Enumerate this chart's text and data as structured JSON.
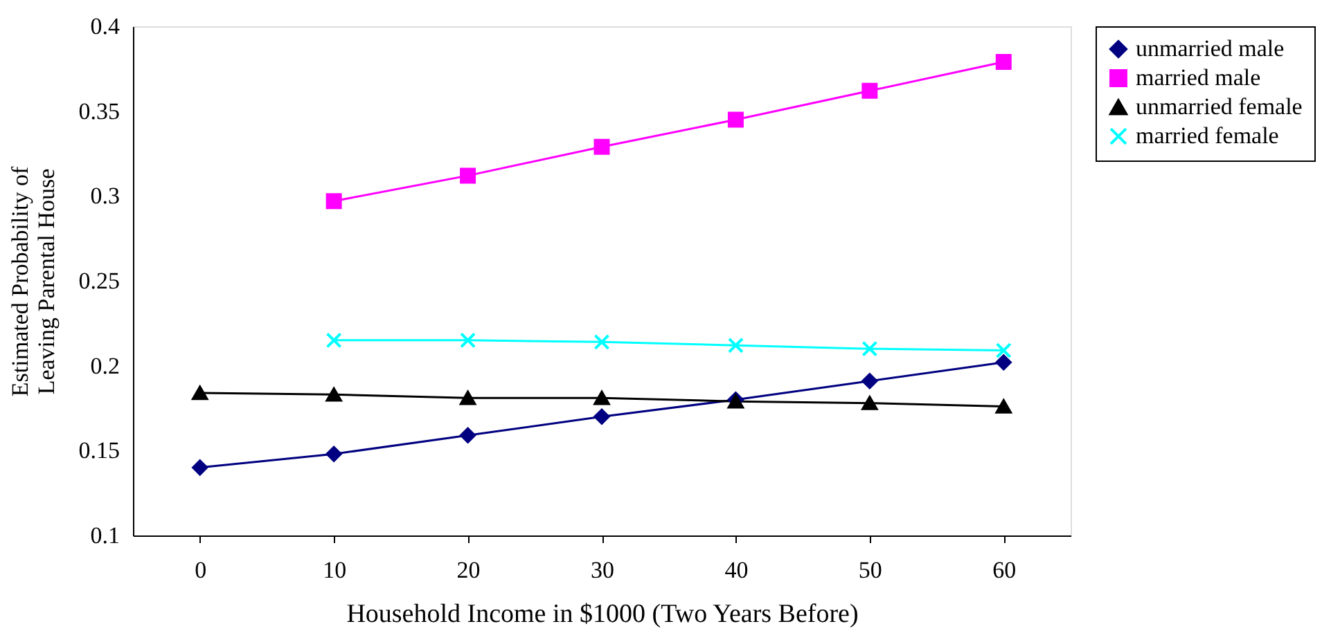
{
  "chart_data": {
    "type": "line",
    "xlabel": "Household Income in $1000 (Two Years Before)",
    "ylabel": "Estimated Probability of Leaving Parental House",
    "categories": [
      "0",
      "10",
      "20",
      "30",
      "40",
      "50",
      "60"
    ],
    "ylim": [
      0.1,
      0.4
    ],
    "yticks": [
      0.1,
      0.15,
      0.2,
      0.25,
      0.3,
      0.35,
      0.4
    ],
    "grid": false,
    "legend": "right",
    "series": [
      {
        "name": "unmarried male",
        "color": "#000080",
        "marker": "diamond",
        "values": [
          0.14,
          0.148,
          0.159,
          0.17,
          0.18,
          0.191,
          0.202
        ]
      },
      {
        "name": "married male",
        "color": "#ff00ff",
        "marker": "square",
        "values": [
          null,
          0.297,
          0.312,
          0.329,
          0.345,
          0.362,
          0.379
        ]
      },
      {
        "name": "unmarried female",
        "color": "#000000",
        "marker": "triangle",
        "values": [
          0.184,
          0.183,
          0.181,
          0.181,
          0.179,
          0.178,
          0.176
        ]
      },
      {
        "name": "married female",
        "color": "#00ffff",
        "marker": "cross",
        "values": [
          null,
          0.215,
          0.215,
          0.214,
          0.212,
          0.21,
          0.209
        ]
      }
    ]
  }
}
